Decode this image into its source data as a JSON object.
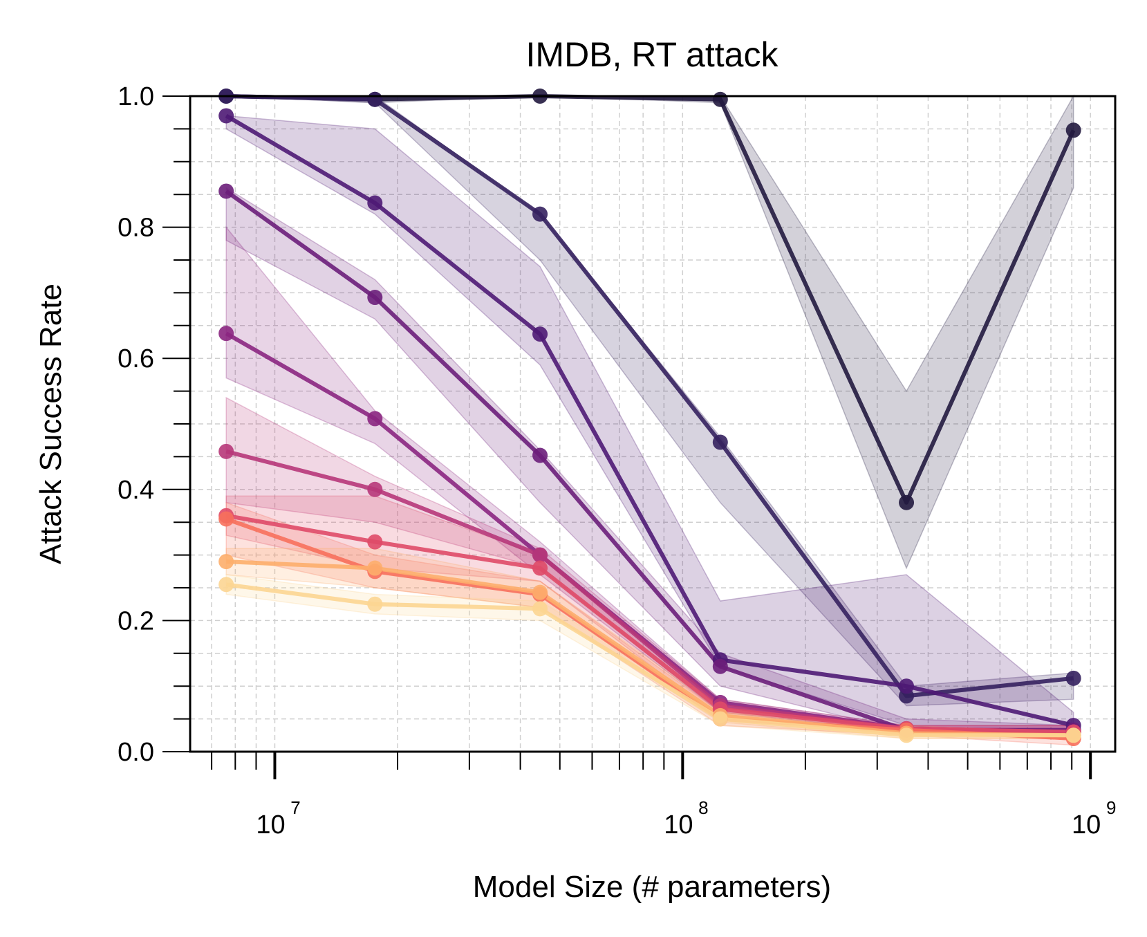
{
  "chart_data": {
    "type": "line",
    "title": "IMDB, RT attack",
    "xlabel": "Model Size (# parameters)",
    "ylabel": "Attack Success Rate",
    "xscale": "log",
    "xlim": [
      6200000,
      1150000000
    ],
    "ylim": [
      0,
      1
    ],
    "yticks": [
      {
        "value": 0.0,
        "label": "0.0"
      },
      {
        "value": 0.2,
        "label": "0.2"
      },
      {
        "value": 0.4,
        "label": "0.4"
      },
      {
        "value": 0.6,
        "label": "0.6"
      },
      {
        "value": 0.8,
        "label": "0.8"
      },
      {
        "value": 1.0,
        "label": "1.0"
      }
    ],
    "xticks": [
      {
        "value": 10000000,
        "base": "10",
        "exp": "7"
      },
      {
        "value": 100000000,
        "base": "10",
        "exp": "8"
      },
      {
        "value": 1000000000,
        "base": "10",
        "exp": "9"
      }
    ],
    "grid": true,
    "legend": "none",
    "x": [
      7600000,
      17600000,
      44700000,
      123700000,
      353800000,
      908800000
    ],
    "series": [
      {
        "color": "#221a3f",
        "values": [
          1.0,
          0.995,
          1.0,
          0.995,
          0.38,
          0.948
        ],
        "lower": [
          1.0,
          0.99,
          1.0,
          0.99,
          0.28,
          0.86
        ],
        "upper": [
          1.0,
          1.0,
          1.0,
          1.0,
          0.55,
          1.0
        ]
      },
      {
        "color": "#35215f",
        "values": [
          1.0,
          0.995,
          0.82,
          0.472,
          0.085,
          0.112
        ],
        "lower": [
          1.0,
          0.99,
          0.75,
          0.38,
          0.07,
          0.08
        ],
        "upper": [
          1.0,
          1.0,
          0.82,
          0.48,
          0.1,
          0.12
        ]
      },
      {
        "color": "#4e1a74",
        "values": [
          0.97,
          0.837,
          0.637,
          0.14,
          0.1,
          0.04
        ],
        "lower": [
          0.95,
          0.82,
          0.59,
          0.13,
          0.04,
          0.02
        ],
        "upper": [
          0.97,
          0.95,
          0.74,
          0.23,
          0.27,
          0.06
        ]
      },
      {
        "color": "#6b1e7a",
        "values": [
          0.855,
          0.693,
          0.452,
          0.13,
          0.033,
          0.033
        ],
        "lower": [
          0.78,
          0.66,
          0.38,
          0.1,
          0.03,
          0.03
        ],
        "upper": [
          0.86,
          0.72,
          0.46,
          0.15,
          0.05,
          0.04
        ]
      },
      {
        "color": "#8b2681",
        "values": [
          0.638,
          0.508,
          0.3,
          0.075,
          0.035,
          0.03
        ],
        "lower": [
          0.57,
          0.47,
          0.27,
          0.06,
          0.03,
          0.02
        ],
        "upper": [
          0.8,
          0.52,
          0.32,
          0.08,
          0.04,
          0.04
        ]
      },
      {
        "color": "#b73779",
        "values": [
          0.458,
          0.4,
          0.3,
          0.07,
          0.035,
          0.03
        ],
        "lower": [
          0.38,
          0.35,
          0.28,
          0.06,
          0.03,
          0.02
        ],
        "upper": [
          0.54,
          0.42,
          0.31,
          0.08,
          0.04,
          0.04
        ]
      },
      {
        "color": "#df4a68",
        "values": [
          0.36,
          0.32,
          0.28,
          0.065,
          0.035,
          0.03
        ],
        "lower": [
          0.33,
          0.28,
          0.26,
          0.05,
          0.03,
          0.02
        ],
        "upper": [
          0.39,
          0.39,
          0.3,
          0.07,
          0.04,
          0.04
        ]
      },
      {
        "color": "#f7705c",
        "values": [
          0.355,
          0.275,
          0.24,
          0.05,
          0.033,
          0.02
        ],
        "lower": [
          0.3,
          0.25,
          0.22,
          0.04,
          0.025,
          0.01
        ],
        "upper": [
          0.38,
          0.3,
          0.26,
          0.06,
          0.04,
          0.03
        ]
      },
      {
        "color": "#fdae6b",
        "values": [
          0.29,
          0.28,
          0.243,
          0.055,
          0.028,
          0.025
        ],
        "lower": [
          0.27,
          0.25,
          0.22,
          0.045,
          0.02,
          0.02
        ],
        "upper": [
          0.31,
          0.31,
          0.26,
          0.065,
          0.035,
          0.03
        ]
      },
      {
        "color": "#fcd592",
        "values": [
          0.255,
          0.225,
          0.218,
          0.05,
          0.025,
          0.025
        ],
        "lower": [
          0.24,
          0.21,
          0.2,
          0.04,
          0.02,
          0.02
        ],
        "upper": [
          0.27,
          0.24,
          0.23,
          0.06,
          0.03,
          0.03
        ]
      }
    ]
  }
}
